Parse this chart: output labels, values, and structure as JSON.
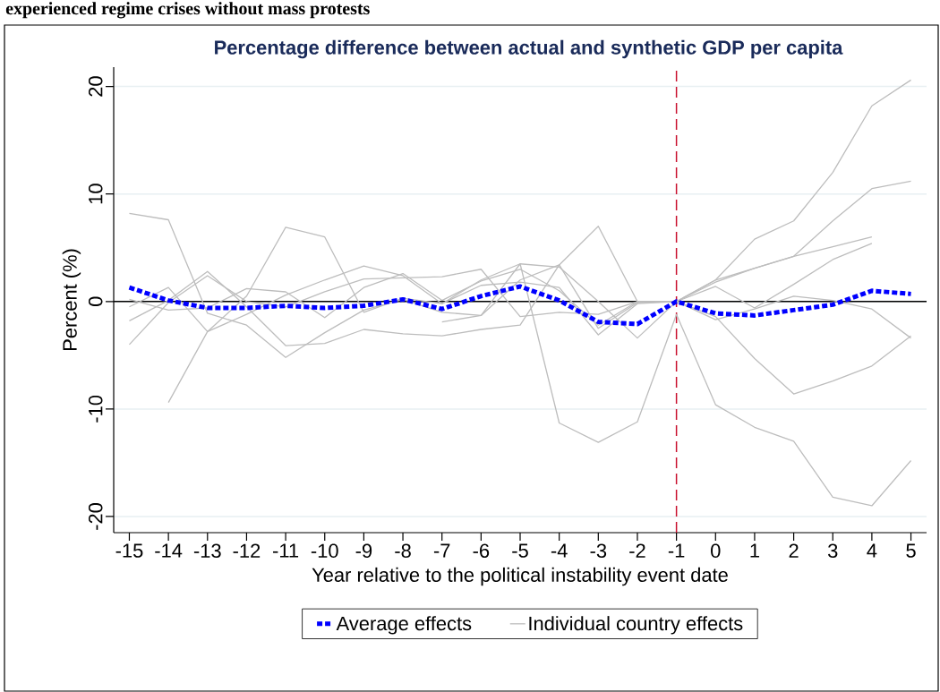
{
  "chart_data": {
    "type": "line",
    "title": "Percentage difference between actual and synthetic GDP per capita",
    "xlabel": "Year relative to the political instability event date",
    "ylabel": "Percent (%)",
    "annotations": [
      "experienced regime crises without mass protests"
    ],
    "x": [
      -15,
      -14,
      -13,
      -12,
      -11,
      -10,
      -9,
      -8,
      -7,
      -6,
      -5,
      -4,
      -3,
      -2,
      -1,
      0,
      1,
      2,
      3,
      4,
      5
    ],
    "xlim": [
      -15.4,
      5.4
    ],
    "ylim": [
      -21.5,
      21.8
    ],
    "xticks": [
      -15,
      -14,
      -13,
      -12,
      -11,
      -10,
      -9,
      -8,
      -7,
      -6,
      -5,
      -4,
      -3,
      -2,
      -1,
      0,
      1,
      2,
      3,
      4,
      5
    ],
    "yticks": [
      -20,
      -10,
      0,
      10,
      20
    ],
    "grid": "y",
    "legend": "bottom",
    "marker": "none",
    "ref_lines": [
      {
        "axis": "y",
        "value": 0,
        "color": "#000000",
        "line_style": "solid"
      },
      {
        "axis": "x",
        "value": -1,
        "color": "#c8102e",
        "line_style": "dashed"
      }
    ],
    "series": [
      {
        "name": "Average effects",
        "color": "#0000ff",
        "line_style": "dotted",
        "values": [
          1.3,
          0.1,
          -0.6,
          -0.6,
          -0.4,
          -0.6,
          -0.4,
          0.2,
          -0.7,
          0.5,
          1.4,
          0.1,
          -1.9,
          -2.1,
          0,
          -1.1,
          -1.3,
          -0.8,
          -0.3,
          1.0,
          0.7
        ]
      },
      {
        "name": "Individual country effects",
        "color": "#bdbdbd",
        "line_style": "solid",
        "values": [
          -0.5,
          1.3,
          -2.8,
          0.5,
          6.9,
          6.0,
          -1.0,
          0.3,
          -0.2,
          2.0,
          3.5,
          3.2,
          0.0,
          -3.4,
          0,
          2.0,
          5.8,
          7.5,
          12.0,
          18.2,
          20.6
        ]
      },
      {
        "color": "#bdbdbd",
        "line_style": "solid",
        "values": [
          8.2,
          7.6,
          -1.1,
          -2.2,
          -5.2,
          -2.9,
          -0.8,
          0.2,
          -1.0,
          -1.3,
          2.0,
          3.4,
          7.0,
          0.0,
          0,
          1.8,
          3.1,
          4.2,
          7.5,
          10.5,
          11.2
        ]
      },
      {
        "color": "#bdbdbd",
        "line_style": "solid",
        "values": [
          0.2,
          -0.8,
          -0.6,
          1.2,
          0.9,
          -1.5,
          1.3,
          2.6,
          0.1,
          1.9,
          3.0,
          1.0,
          -2.2,
          0.0,
          0,
          2.0,
          3.1,
          4.2,
          5.1,
          6.0,
          null
        ]
      },
      {
        "color": "#bdbdbd",
        "line_style": "solid",
        "values": [
          -1.8,
          0.1,
          2.8,
          -0.5,
          -4.1,
          -3.9,
          -2.6,
          -3.0,
          -3.2,
          -2.6,
          -2.2,
          3.4,
          -2.5,
          -0.1,
          0,
          1.4,
          -0.6,
          1.6,
          3.9,
          5.4,
          null
        ]
      },
      {
        "color": "#bdbdbd",
        "line_style": "solid",
        "values": [
          -4.0,
          -0.1,
          2.4,
          0.0,
          -0.5,
          0.9,
          2.1,
          2.2,
          2.3,
          3.0,
          -1.4,
          -1.0,
          -1.2,
          0.0,
          0,
          -1.7,
          -0.7,
          0.5,
          0.1,
          -0.7,
          -3.4
        ]
      },
      {
        "color": "#bdbdbd",
        "line_style": "solid",
        "values": [
          null,
          -9.4,
          -2.8,
          -1.2,
          0.6,
          2.0,
          3.3,
          2.4,
          -0.2,
          1.5,
          1.8,
          1.3,
          -3.1,
          -0.2,
          0,
          -1.4,
          -5.3,
          -8.6,
          -7.4,
          -6.0,
          -3.2
        ]
      },
      {
        "color": "#bdbdbd",
        "line_style": "solid",
        "values": [
          null,
          null,
          null,
          null,
          null,
          null,
          null,
          null,
          -1.9,
          -1.3,
          3.5,
          -11.3,
          -13.1,
          -11.2,
          -1.2,
          -9.6,
          -11.7,
          -13.0,
          -18.2,
          -19.0,
          -14.8
        ]
      }
    ]
  }
}
